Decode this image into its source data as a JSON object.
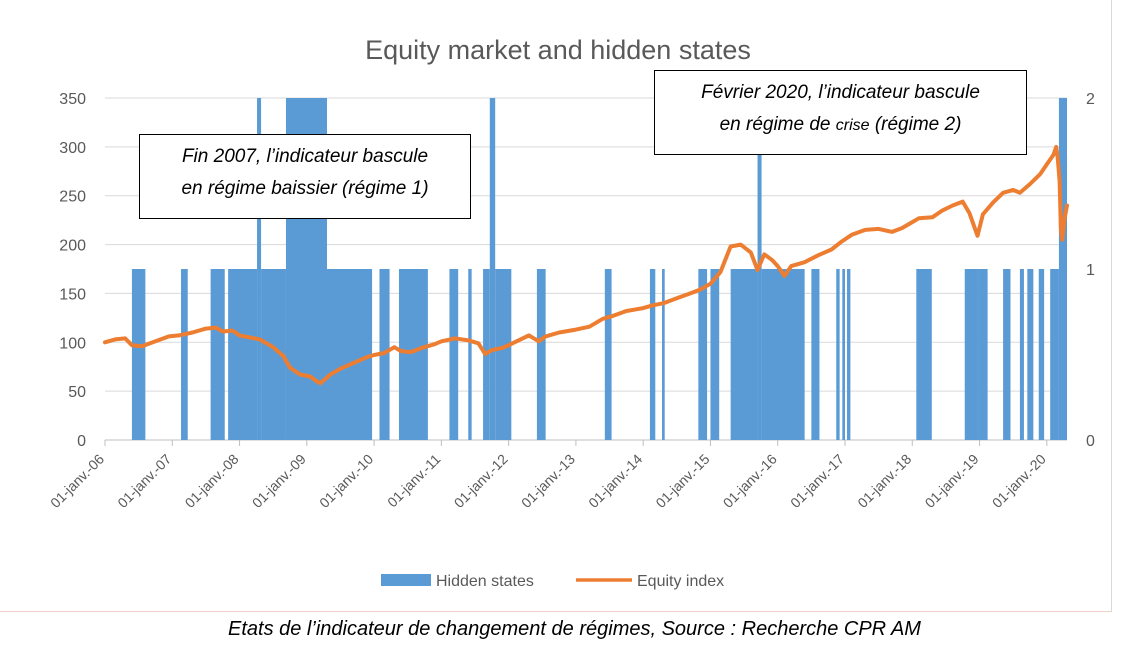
{
  "chart_data": {
    "type": "bar+line",
    "title": "Equity market and hidden states",
    "y_left": {
      "ticks": [
        0,
        50,
        100,
        150,
        200,
        250,
        300,
        350
      ],
      "lim": [
        0,
        350
      ]
    },
    "y_right": {
      "ticks": [
        0,
        1,
        2
      ],
      "lim": [
        0,
        2
      ]
    },
    "x_tick_labels": [
      "01-janv.-06",
      "01-janv.-07",
      "01-janv.-08",
      "01-janv.-09",
      "01-janv.-10",
      "01-janv.-11",
      "01-janv.-12",
      "01-janv.-13",
      "01-janv.-14",
      "01-janv.-15",
      "01-janv.-16",
      "01-janv.-17",
      "01-janv.-18",
      "01-janv.-19",
      "01-janv.-20"
    ],
    "x_range_years": [
      2006.0,
      2020.3
    ],
    "grid": true,
    "legend_position": "bottom",
    "series": [
      {
        "name": "Hidden states",
        "kind": "bar",
        "axis": "right",
        "color": "#5b9bd5",
        "periods": [
          {
            "start": 2006.4,
            "end": 2006.6,
            "state": 1
          },
          {
            "start": 2007.13,
            "end": 2007.23,
            "state": 1
          },
          {
            "start": 2007.57,
            "end": 2007.78,
            "state": 1
          },
          {
            "start": 2007.83,
            "end": 2008.26,
            "state": 1
          },
          {
            "start": 2008.26,
            "end": 2008.32,
            "state": 2
          },
          {
            "start": 2008.32,
            "end": 2008.69,
            "state": 1
          },
          {
            "start": 2008.69,
            "end": 2009.3,
            "state": 2
          },
          {
            "start": 2009.3,
            "end": 2009.97,
            "state": 1
          },
          {
            "start": 2010.08,
            "end": 2010.23,
            "state": 1
          },
          {
            "start": 2010.37,
            "end": 2010.8,
            "state": 1
          },
          {
            "start": 2011.12,
            "end": 2011.25,
            "state": 1
          },
          {
            "start": 2011.4,
            "end": 2011.45,
            "state": 1
          },
          {
            "start": 2011.62,
            "end": 2011.72,
            "state": 1
          },
          {
            "start": 2011.72,
            "end": 2011.8,
            "state": 2
          },
          {
            "start": 2011.8,
            "end": 2012.04,
            "state": 1
          },
          {
            "start": 2012.42,
            "end": 2012.55,
            "state": 1
          },
          {
            "start": 2013.43,
            "end": 2013.53,
            "state": 1
          },
          {
            "start": 2014.1,
            "end": 2014.18,
            "state": 1
          },
          {
            "start": 2014.28,
            "end": 2014.32,
            "state": 1
          },
          {
            "start": 2014.82,
            "end": 2014.95,
            "state": 1
          },
          {
            "start": 2015.0,
            "end": 2015.13,
            "state": 1
          },
          {
            "start": 2015.3,
            "end": 2015.7,
            "state": 1
          },
          {
            "start": 2015.7,
            "end": 2015.76,
            "state": 2
          },
          {
            "start": 2015.76,
            "end": 2016.4,
            "state": 1
          },
          {
            "start": 2016.5,
            "end": 2016.62,
            "state": 1
          },
          {
            "start": 2016.87,
            "end": 2016.92,
            "state": 1
          },
          {
            "start": 2016.96,
            "end": 2017.0,
            "state": 1
          },
          {
            "start": 2017.03,
            "end": 2017.08,
            "state": 1
          },
          {
            "start": 2018.06,
            "end": 2018.29,
            "state": 1
          },
          {
            "start": 2018.78,
            "end": 2018.97,
            "state": 1
          },
          {
            "start": 2018.97,
            "end": 2019.0,
            "state": 1
          },
          {
            "start": 2019.0,
            "end": 2019.12,
            "state": 1
          },
          {
            "start": 2019.35,
            "end": 2019.46,
            "state": 1
          },
          {
            "start": 2019.6,
            "end": 2019.66,
            "state": 1
          },
          {
            "start": 2019.71,
            "end": 2019.8,
            "state": 1
          },
          {
            "start": 2019.88,
            "end": 2019.96,
            "state": 1
          },
          {
            "start": 2020.05,
            "end": 2020.18,
            "state": 1
          },
          {
            "start": 2020.18,
            "end": 2020.3,
            "state": 2
          }
        ]
      },
      {
        "name": "Equity index",
        "kind": "line",
        "axis": "left",
        "color": "#ed7d31",
        "points": [
          [
            2006.0,
            100
          ],
          [
            2006.15,
            103
          ],
          [
            2006.3,
            104
          ],
          [
            2006.4,
            97
          ],
          [
            2006.55,
            96
          ],
          [
            2006.75,
            101
          ],
          [
            2006.95,
            106
          ],
          [
            2007.1,
            107
          ],
          [
            2007.3,
            110
          ],
          [
            2007.5,
            114
          ],
          [
            2007.65,
            115
          ],
          [
            2007.75,
            111
          ],
          [
            2007.9,
            112
          ],
          [
            2008.0,
            107
          ],
          [
            2008.15,
            105
          ],
          [
            2008.3,
            103
          ],
          [
            2008.5,
            95
          ],
          [
            2008.65,
            86
          ],
          [
            2008.75,
            74
          ],
          [
            2008.9,
            67
          ],
          [
            2009.05,
            65
          ],
          [
            2009.15,
            60
          ],
          [
            2009.2,
            58
          ],
          [
            2009.35,
            67
          ],
          [
            2009.5,
            73
          ],
          [
            2009.7,
            79
          ],
          [
            2009.9,
            85
          ],
          [
            2010.0,
            87
          ],
          [
            2010.15,
            89
          ],
          [
            2010.3,
            95
          ],
          [
            2010.4,
            91
          ],
          [
            2010.55,
            90
          ],
          [
            2010.7,
            94
          ],
          [
            2010.9,
            98
          ],
          [
            2011.0,
            101
          ],
          [
            2011.2,
            104
          ],
          [
            2011.4,
            102
          ],
          [
            2011.55,
            99
          ],
          [
            2011.65,
            88
          ],
          [
            2011.75,
            92
          ],
          [
            2011.9,
            94
          ],
          [
            2012.0,
            97
          ],
          [
            2012.15,
            102
          ],
          [
            2012.3,
            107
          ],
          [
            2012.45,
            101
          ],
          [
            2012.55,
            106
          ],
          [
            2012.75,
            110
          ],
          [
            2013.0,
            113
          ],
          [
            2013.2,
            116
          ],
          [
            2013.4,
            124
          ],
          [
            2013.55,
            127
          ],
          [
            2013.75,
            132
          ],
          [
            2014.0,
            135
          ],
          [
            2014.15,
            138
          ],
          [
            2014.3,
            140
          ],
          [
            2014.5,
            145
          ],
          [
            2014.7,
            150
          ],
          [
            2014.85,
            154
          ],
          [
            2015.0,
            160
          ],
          [
            2015.15,
            172
          ],
          [
            2015.3,
            198
          ],
          [
            2015.45,
            200
          ],
          [
            2015.6,
            192
          ],
          [
            2015.7,
            174
          ],
          [
            2015.8,
            190
          ],
          [
            2015.92,
            184
          ],
          [
            2016.0,
            178
          ],
          [
            2016.1,
            168
          ],
          [
            2016.2,
            178
          ],
          [
            2016.4,
            182
          ],
          [
            2016.6,
            189
          ],
          [
            2016.8,
            195
          ],
          [
            2016.95,
            203
          ],
          [
            2017.1,
            210
          ],
          [
            2017.3,
            215
          ],
          [
            2017.5,
            216
          ],
          [
            2017.7,
            213
          ],
          [
            2017.85,
            217
          ],
          [
            2018.0,
            223
          ],
          [
            2018.1,
            227
          ],
          [
            2018.3,
            228
          ],
          [
            2018.45,
            235
          ],
          [
            2018.6,
            240
          ],
          [
            2018.75,
            244
          ],
          [
            2018.85,
            232
          ],
          [
            2018.97,
            209
          ],
          [
            2019.05,
            231
          ],
          [
            2019.2,
            243
          ],
          [
            2019.35,
            253
          ],
          [
            2019.5,
            256
          ],
          [
            2019.6,
            253
          ],
          [
            2019.75,
            262
          ],
          [
            2019.9,
            272
          ],
          [
            2020.0,
            282
          ],
          [
            2020.1,
            292
          ],
          [
            2020.14,
            300
          ],
          [
            2020.16,
            290
          ],
          [
            2020.19,
            265
          ],
          [
            2020.21,
            215
          ],
          [
            2020.23,
            205
          ],
          [
            2020.26,
            225
          ],
          [
            2020.3,
            240
          ]
        ]
      }
    ]
  },
  "annotations": {
    "left_line1": "Fin 2007, l’indicateur bascule",
    "left_line2": "en régime baissier (régime 1)",
    "right_line1": "Février 2020, l’indicateur bascule",
    "right_line2a": "en régime de ",
    "right_line2b": "crise",
    "right_line2c": " (régime 2)"
  },
  "caption": "Etats de l’indicateur de changement de régimes, Source : Recherche CPR AM"
}
